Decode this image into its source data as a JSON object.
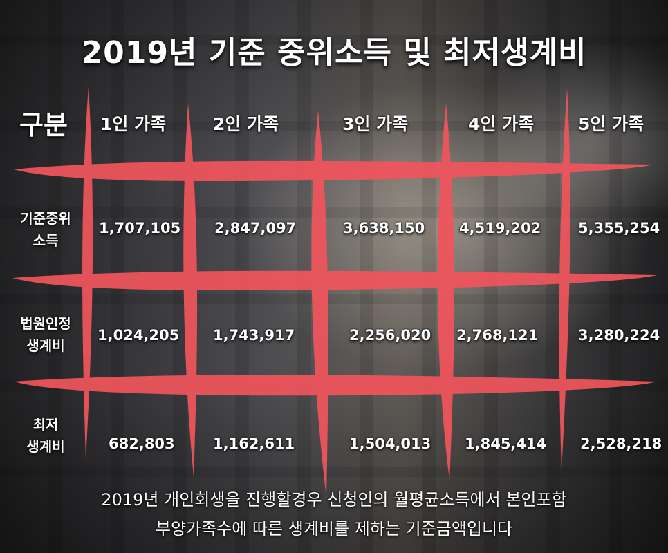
{
  "title": "2019년 기준 중위소득 및 최저생계비",
  "table": {
    "corner_label": "구분",
    "columns": [
      "1인 가족",
      "2인 가족",
      "3인 가족",
      "4인 가족",
      "5인 가족"
    ],
    "rows": [
      {
        "label_line1": "기준중위",
        "label_line2": "소득",
        "values": [
          "1,707,105",
          "2,847,097",
          "3,638,150",
          "4,519,202",
          "5,355,254"
        ]
      },
      {
        "label_line1": "법원인정",
        "label_line2": "생계비",
        "values": [
          "1,024,205",
          "1,743,917",
          "2,256,020",
          "2,768,121",
          "3,280,224"
        ]
      },
      {
        "label_line1": "최저",
        "label_line2": "생계비",
        "values": [
          "682,803",
          "1,162,611",
          "1,504,013",
          "1,845,414",
          "2,528,218"
        ]
      }
    ]
  },
  "footer": {
    "line1": "2019년 개인회생을 진행할경우 신청인의 월평균소득에서 본인포함",
    "line2": "부양가족수에 따른 생계비를 제하는 기준금액입니다"
  },
  "colors": {
    "grid_stroke": "#f0555c",
    "text": "#ffffff"
  }
}
